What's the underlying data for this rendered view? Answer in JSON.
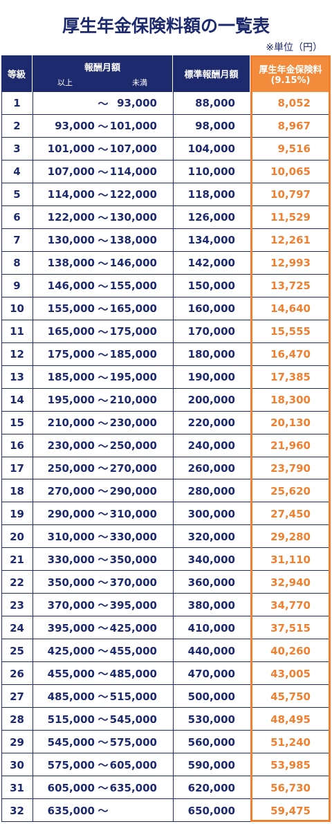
{
  "header": {
    "title": "厚生年金保険料額の一覧表",
    "unit": "※単位（円）"
  },
  "table": {
    "columns": {
      "grade": "等級",
      "salary": "報酬月額",
      "salary_from": "以上",
      "salary_to": "未満",
      "standard": "標準報酬月額",
      "premium": "厚生年金保険料",
      "premium_rate": "(9.15%)"
    },
    "rows": [
      {
        "grade": "1",
        "sep": "～",
        "to": "93,000",
        "standard": "88,000",
        "premium": "8,052"
      },
      {
        "grade": "2",
        "from": "93,000",
        "sep": "～",
        "to": "101,000",
        "standard": "98,000",
        "premium": "8,967"
      },
      {
        "grade": "3",
        "from": "101,000",
        "sep": "～",
        "to": "107,000",
        "standard": "104,000",
        "premium": "9,516"
      },
      {
        "grade": "4",
        "from": "107,000",
        "sep": "～",
        "to": "114,000",
        "standard": "110,000",
        "premium": "10,065"
      },
      {
        "grade": "5",
        "from": "114,000",
        "sep": "～",
        "to": "122,000",
        "standard": "118,000",
        "premium": "10,797"
      },
      {
        "grade": "6",
        "from": "122,000",
        "sep": "～",
        "to": "130,000",
        "standard": "126,000",
        "premium": "11,529"
      },
      {
        "grade": "7",
        "from": "130,000",
        "sep": "～",
        "to": "138,000",
        "standard": "134,000",
        "premium": "12,261"
      },
      {
        "grade": "8",
        "from": "138,000",
        "sep": "～",
        "to": "146,000",
        "standard": "142,000",
        "premium": "12,993"
      },
      {
        "grade": "9",
        "from": "146,000",
        "sep": "～",
        "to": "155,000",
        "standard": "150,000",
        "premium": "13,725"
      },
      {
        "grade": "10",
        "from": "155,000",
        "sep": "～",
        "to": "165,000",
        "standard": "160,000",
        "premium": "14,640"
      },
      {
        "grade": "11",
        "from": "165,000",
        "sep": "～",
        "to": "175,000",
        "standard": "170,000",
        "premium": "15,555"
      },
      {
        "grade": "12",
        "from": "175,000",
        "sep": "～",
        "to": "185,000",
        "standard": "180,000",
        "premium": "16,470"
      },
      {
        "grade": "13",
        "from": "185,000",
        "sep": "～",
        "to": "195,000",
        "standard": "190,000",
        "premium": "17,385"
      },
      {
        "grade": "14",
        "from": "195,000",
        "sep": "～",
        "to": "210,000",
        "standard": "200,000",
        "premium": "18,300"
      },
      {
        "grade": "15",
        "from": "210,000",
        "sep": "～",
        "to": "230,000",
        "standard": "220,000",
        "premium": "20,130"
      },
      {
        "grade": "16",
        "from": "230,000",
        "sep": "～",
        "to": "250,000",
        "standard": "240,000",
        "premium": "21,960"
      },
      {
        "grade": "17",
        "from": "250,000",
        "sep": "～",
        "to": "270,000",
        "standard": "260,000",
        "premium": "23,790"
      },
      {
        "grade": "18",
        "from": "270,000",
        "sep": "～",
        "to": "290,000",
        "standard": "280,000",
        "premium": "25,620"
      },
      {
        "grade": "19",
        "from": "290,000",
        "sep": "～",
        "to": "310,000",
        "standard": "300,000",
        "premium": "27,450"
      },
      {
        "grade": "20",
        "from": "310,000",
        "sep": "～",
        "to": "330,000",
        "standard": "320,000",
        "premium": "29,280"
      },
      {
        "grade": "21",
        "from": "330,000",
        "sep": "～",
        "to": "350,000",
        "standard": "340,000",
        "premium": "31,110"
      },
      {
        "grade": "22",
        "from": "350,000",
        "sep": "～",
        "to": "370,000",
        "standard": "360,000",
        "premium": "32,940"
      },
      {
        "grade": "23",
        "from": "370,000",
        "sep": "～",
        "to": "395,000",
        "standard": "380,000",
        "premium": "34,770"
      },
      {
        "grade": "24",
        "from": "395,000",
        "sep": "～",
        "to": "425,000",
        "standard": "410,000",
        "premium": "37,515"
      },
      {
        "grade": "25",
        "from": "425,000",
        "sep": "～",
        "to": "455,000",
        "standard": "440,000",
        "premium": "40,260"
      },
      {
        "grade": "26",
        "from": "455,000",
        "sep": "～",
        "to": "485,000",
        "standard": "470,000",
        "premium": "43,005"
      },
      {
        "grade": "27",
        "from": "485,000",
        "sep": "～",
        "to": "515,000",
        "standard": "500,000",
        "premium": "45,750"
      },
      {
        "grade": "28",
        "from": "515,000",
        "sep": "～",
        "to": "545,000",
        "standard": "530,000",
        "premium": "48,495"
      },
      {
        "grade": "29",
        "from": "545,000",
        "sep": "～",
        "to": "575,000",
        "standard": "560,000",
        "premium": "51,240"
      },
      {
        "grade": "30",
        "from": "575,000",
        "sep": "～",
        "to": "605,000",
        "standard": "590,000",
        "premium": "53,985"
      },
      {
        "grade": "31",
        "from": "605,000",
        "sep": "～",
        "to": "635,000",
        "standard": "620,000",
        "premium": "56,730"
      },
      {
        "grade": "32",
        "from": "635,000",
        "sep": "～",
        "standard": "650,000",
        "premium": "59,475"
      }
    ]
  }
}
